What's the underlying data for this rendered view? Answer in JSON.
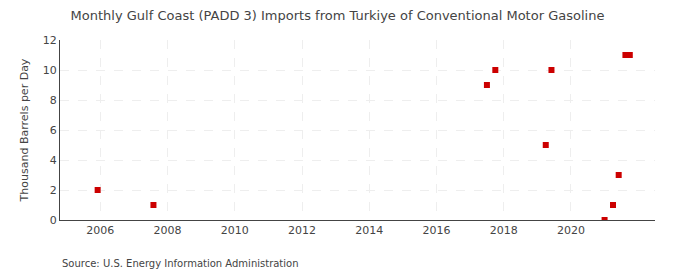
{
  "chart_data": {
    "type": "scatter",
    "title": "Monthly Gulf Coast (PADD 3) Imports from Turkiye of Conventional Motor Gasoline",
    "ylabel": "Thousand Barrels per Day",
    "annotations": [
      "Source: U.S. Energy Information Administration"
    ],
    "x": [
      2005.92,
      2007.58,
      2017.5,
      2017.75,
      2019.25,
      2019.42,
      2021.0,
      2021.25,
      2021.42,
      2021.62,
      2021.75
    ],
    "values": [
      2,
      1,
      9,
      10,
      5,
      10,
      0,
      1,
      3,
      11,
      11
    ],
    "color": "#cc0000",
    "marker": "square",
    "xlim": [
      2004.8,
      2022.5
    ],
    "ylim": [
      0,
      12
    ],
    "xticks": [
      2006,
      2008,
      2010,
      2012,
      2014,
      2016,
      2018,
      2020
    ],
    "yticks": [
      0,
      2,
      4,
      6,
      8,
      10,
      12
    ],
    "grid": true
  }
}
